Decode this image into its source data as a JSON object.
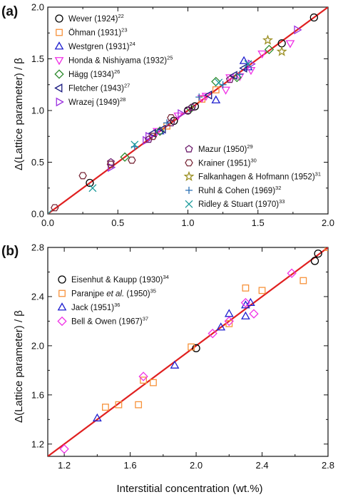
{
  "figure": {
    "ylabel": "Δ(Lattice parameter) / β",
    "xlabel": "Interstitial concentration (wt.%)"
  },
  "chart_data": [
    {
      "type": "scatter",
      "panel_label": "(a)",
      "xlim": [
        0,
        2.0
      ],
      "ylim": [
        0,
        2.0
      ],
      "xticks": [
        "0.0",
        "0.5",
        "1.0",
        "1.5",
        "2.0"
      ],
      "yticks": [
        "0.0",
        "0.5",
        "1.0",
        "1.5",
        "2.0"
      ],
      "grid": false,
      "fit_line": {
        "color": "#e02020",
        "x": [
          0,
          2.0
        ],
        "y": [
          0,
          2.0
        ]
      },
      "legend_groups": [
        {
          "position": "top-left",
          "entries": [
            0,
            1,
            2,
            3,
            4,
            5,
            6
          ]
        },
        {
          "position": "bottom-right",
          "entries": [
            7,
            8,
            9,
            10,
            11
          ]
        }
      ],
      "series": [
        {
          "name": "Wever (1924)",
          "ref": "22",
          "marker": "circle",
          "color": "#000000",
          "points": [
            [
              0.3,
              0.3
            ],
            [
              0.9,
              0.9
            ],
            [
              1.0,
              1.0
            ],
            [
              1.05,
              1.04
            ],
            [
              1.67,
              1.65
            ],
            [
              1.9,
              1.9
            ]
          ]
        },
        {
          "name": "Öhman (1931)",
          "ref": "23",
          "marker": "square",
          "color": "#f7923a",
          "points": [
            [
              0.85,
              0.85
            ],
            [
              1.1,
              1.11
            ],
            [
              1.2,
              1.2
            ]
          ]
        },
        {
          "name": "Westgren (1931)",
          "ref": "24",
          "marker": "triangle-up",
          "color": "#1f1fcf",
          "points": [
            [
              0.8,
              0.8
            ],
            [
              1.2,
              1.1
            ],
            [
              1.4,
              1.48
            ],
            [
              1.43,
              1.42
            ]
          ]
        },
        {
          "name": "Honda & Nishiyama (1932)",
          "ref": "25",
          "marker": "triangle-down",
          "color": "#f032e6",
          "points": [
            [
              0.78,
              0.8
            ],
            [
              0.93,
              0.95
            ],
            [
              1.1,
              1.12
            ],
            [
              1.13,
              1.14
            ],
            [
              1.27,
              1.2
            ],
            [
              1.3,
              1.32
            ],
            [
              1.37,
              1.33
            ],
            [
              1.45,
              1.39
            ],
            [
              1.53,
              1.55
            ],
            [
              1.73,
              1.65
            ]
          ]
        },
        {
          "name": "Hägg (1934)",
          "ref": "26",
          "marker": "diamond",
          "color": "#2e8b2e",
          "points": [
            [
              0.55,
              0.55
            ],
            [
              0.8,
              0.8
            ],
            [
              1.02,
              1.02
            ],
            [
              1.2,
              1.28
            ],
            [
              1.35,
              1.32
            ],
            [
              1.58,
              1.59
            ]
          ]
        },
        {
          "name": "Fletcher (1943)",
          "ref": "27",
          "marker": "triangle-left",
          "color": "#1a1a80",
          "points": [
            [
              0.75,
              0.78
            ],
            [
              0.82,
              0.82
            ],
            [
              1.15,
              1.15
            ],
            [
              1.33,
              1.34
            ],
            [
              1.4,
              1.41
            ]
          ]
        },
        {
          "name": "Wrazej (1949)",
          "ref": "28",
          "marker": "triangle-right",
          "color": "#9b30e0",
          "points": [
            [
              0.45,
              0.45
            ],
            [
              0.7,
              0.71
            ],
            [
              0.72,
              0.75
            ],
            [
              0.95,
              0.97
            ],
            [
              1.45,
              1.45
            ],
            [
              1.78,
              1.78
            ]
          ]
        },
        {
          "name": "Mazur (1950)",
          "ref": "29",
          "marker": "pentagon",
          "color": "#6b1a6b",
          "points": [
            [
              0.45,
              0.5
            ],
            [
              0.72,
              0.72
            ],
            [
              0.88,
              0.88
            ],
            [
              1.0,
              1.0
            ],
            [
              1.03,
              1.03
            ],
            [
              1.3,
              1.3
            ]
          ]
        },
        {
          "name": "Krainer (1951)",
          "ref": "30",
          "marker": "hexagon",
          "color": "#7a2a3a",
          "points": [
            [
              0.05,
              0.06
            ],
            [
              0.25,
              0.37
            ],
            [
              0.45,
              0.48
            ],
            [
              0.6,
              0.52
            ],
            [
              0.75,
              0.75
            ],
            [
              0.88,
              0.93
            ]
          ]
        },
        {
          "name": "Falkanhagen & Hofmann (1952)",
          "ref": "31",
          "marker": "star",
          "color": "#9b8f22",
          "points": [
            [
              1.57,
              1.68
            ],
            [
              1.67,
              1.57
            ]
          ]
        },
        {
          "name": "Ruhl & Cohen (1969)",
          "ref": "32",
          "marker": "plus",
          "color": "#2a6fb3",
          "points": [
            [
              0.62,
              0.65
            ],
            [
              0.85,
              0.88
            ],
            [
              1.08,
              1.13
            ],
            [
              1.25,
              1.25
            ],
            [
              1.37,
              1.35
            ]
          ]
        },
        {
          "name": "Ridley & Stuart (1970)",
          "ref": "33",
          "marker": "x",
          "color": "#1a9a9a",
          "points": [
            [
              0.0,
              0.0
            ],
            [
              0.32,
              0.25
            ],
            [
              0.62,
              0.67
            ],
            [
              1.22,
              1.27
            ],
            [
              1.43,
              1.45
            ]
          ]
        }
      ]
    },
    {
      "type": "scatter",
      "panel_label": "(b)",
      "xlim": [
        1.1,
        2.8
      ],
      "ylim": [
        1.1,
        2.8
      ],
      "xticks": [
        "1.2",
        "1.6",
        "2.0",
        "2.4",
        "2.8"
      ],
      "yticks": [
        "1.2",
        "1.6",
        "2.0",
        "2.4",
        "2.8"
      ],
      "grid": false,
      "fit_line": {
        "color": "#e02020",
        "x": [
          1.1,
          2.8
        ],
        "y": [
          1.1,
          2.8
        ]
      },
      "legend_groups": [
        {
          "position": "top-left",
          "entries": [
            0,
            1,
            2,
            3
          ]
        }
      ],
      "series": [
        {
          "name": "Eisenhut & Kaupp (1930)",
          "ref": "34",
          "marker": "circle",
          "color": "#000000",
          "points": [
            [
              2.0,
              1.98
            ],
            [
              2.72,
              2.69
            ],
            [
              2.74,
              2.75
            ]
          ]
        },
        {
          "name": "Paranjpe et al. (1950)",
          "name_italic_part": "et al.",
          "ref": "35",
          "marker": "square",
          "color": "#f7923a",
          "points": [
            [
              1.45,
              1.5
            ],
            [
              1.53,
              1.52
            ],
            [
              1.65,
              1.52
            ],
            [
              1.68,
              1.72
            ],
            [
              1.74,
              1.7
            ],
            [
              1.97,
              1.99
            ],
            [
              2.2,
              2.18
            ],
            [
              2.3,
              2.47
            ],
            [
              2.4,
              2.45
            ],
            [
              2.65,
              2.53
            ],
            [
              2.8,
              2.8
            ]
          ]
        },
        {
          "name": "Jack (1951)",
          "ref": "36",
          "marker": "triangle-up",
          "color": "#1f1fcf",
          "points": [
            [
              1.4,
              1.41
            ],
            [
              1.87,
              1.84
            ],
            [
              2.15,
              2.15
            ],
            [
              2.2,
              2.26
            ],
            [
              2.3,
              2.24
            ],
            [
              2.3,
              2.33
            ],
            [
              2.33,
              2.35
            ]
          ]
        },
        {
          "name": "Bell & Owen (1967)",
          "ref": "37",
          "marker": "diamond",
          "color": "#f032e6",
          "points": [
            [
              1.2,
              1.16
            ],
            [
              1.68,
              1.75
            ],
            [
              2.1,
              2.1
            ],
            [
              2.2,
              2.2
            ],
            [
              2.3,
              2.35
            ],
            [
              2.35,
              2.26
            ],
            [
              2.58,
              2.59
            ]
          ]
        }
      ]
    }
  ]
}
